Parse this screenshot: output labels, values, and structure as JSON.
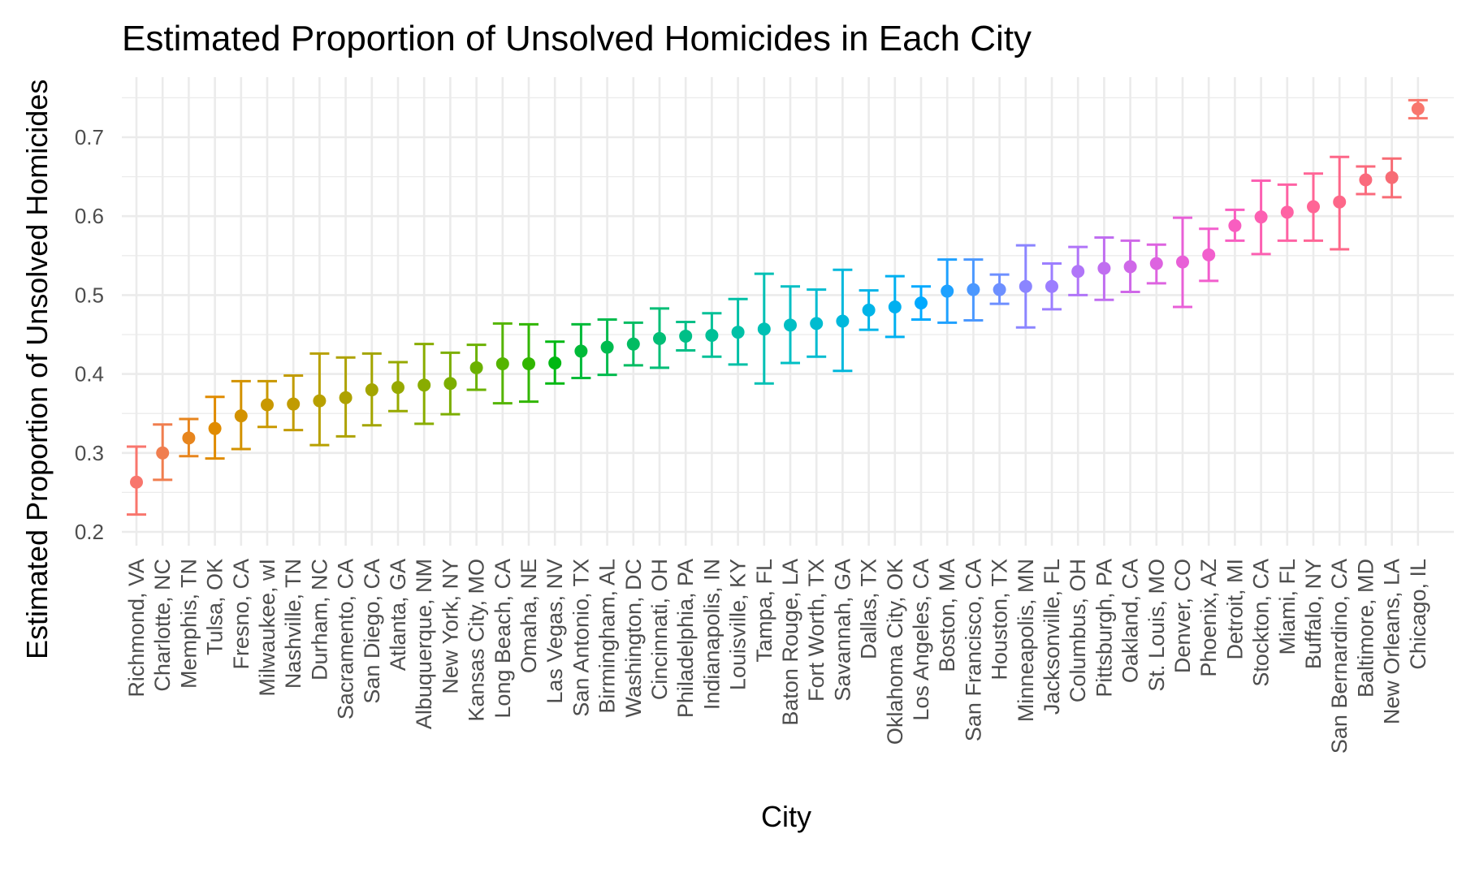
{
  "chart_data": {
    "type": "scatter",
    "title": "Estimated Proportion of Unsolved Homicides in Each City",
    "xlabel": "City",
    "ylabel": "Estimated Proportion of Unsolved Homicides",
    "ylim": [
      0.18,
      0.78
    ],
    "yticks": [
      "0.2",
      "0.3",
      "0.4",
      "0.5",
      "0.6",
      "0.7"
    ],
    "grid": true,
    "error_bars": true,
    "points": [
      {
        "city": "Richmond, VA",
        "estimate": 0.263,
        "lower": 0.222,
        "upper": 0.308,
        "color": "#F8766D"
      },
      {
        "city": "Charlotte, NC",
        "estimate": 0.3,
        "lower": 0.266,
        "upper": 0.336,
        "color": "#F07E4F"
      },
      {
        "city": "Memphis, TN",
        "estimate": 0.319,
        "lower": 0.296,
        "upper": 0.343,
        "color": "#E7851E"
      },
      {
        "city": "Tulsa, OK",
        "estimate": 0.331,
        "lower": 0.293,
        "upper": 0.371,
        "color": "#E08B00"
      },
      {
        "city": "Fresno, CA",
        "estimate": 0.347,
        "lower": 0.305,
        "upper": 0.391,
        "color": "#D39200"
      },
      {
        "city": "Milwaukee, wI",
        "estimate": 0.361,
        "lower": 0.333,
        "upper": 0.391,
        "color": "#C99800"
      },
      {
        "city": "Nashville, TN",
        "estimate": 0.362,
        "lower": 0.329,
        "upper": 0.398,
        "color": "#C19B00"
      },
      {
        "city": "Durham, NC",
        "estimate": 0.366,
        "lower": 0.31,
        "upper": 0.426,
        "color": "#B8A000"
      },
      {
        "city": "Sacramento, CA",
        "estimate": 0.37,
        "lower": 0.321,
        "upper": 0.421,
        "color": "#AEA200"
      },
      {
        "city": "San Diego, CA",
        "estimate": 0.38,
        "lower": 0.335,
        "upper": 0.426,
        "color": "#A3A500"
      },
      {
        "city": "Atlanta, GA",
        "estimate": 0.383,
        "lower": 0.353,
        "upper": 0.415,
        "color": "#97A900"
      },
      {
        "city": "Albuquerque, NM",
        "estimate": 0.386,
        "lower": 0.337,
        "upper": 0.438,
        "color": "#89AC00"
      },
      {
        "city": "New York, NY",
        "estimate": 0.388,
        "lower": 0.349,
        "upper": 0.427,
        "color": "#7CAE00"
      },
      {
        "city": "Kansas City, MO",
        "estimate": 0.408,
        "lower": 0.38,
        "upper": 0.437,
        "color": "#6BB100"
      },
      {
        "city": "Long Beach, CA",
        "estimate": 0.413,
        "lower": 0.363,
        "upper": 0.464,
        "color": "#54B400"
      },
      {
        "city": "Omaha, NE",
        "estimate": 0.413,
        "lower": 0.365,
        "upper": 0.463,
        "color": "#31B600"
      },
      {
        "city": "Las Vegas, NV",
        "estimate": 0.414,
        "lower": 0.388,
        "upper": 0.441,
        "color": "#00B812"
      },
      {
        "city": "San Antonio, TX",
        "estimate": 0.429,
        "lower": 0.395,
        "upper": 0.463,
        "color": "#00BA38"
      },
      {
        "city": "Birmingham, AL",
        "estimate": 0.434,
        "lower": 0.399,
        "upper": 0.469,
        "color": "#00BB4E"
      },
      {
        "city": "Washington, DC",
        "estimate": 0.438,
        "lower": 0.411,
        "upper": 0.465,
        "color": "#00BC62"
      },
      {
        "city": "Cincinnati, OH",
        "estimate": 0.445,
        "lower": 0.408,
        "upper": 0.483,
        "color": "#00BE76"
      },
      {
        "city": "Philadelphia, PA",
        "estimate": 0.448,
        "lower": 0.43,
        "upper": 0.466,
        "color": "#00BF87"
      },
      {
        "city": "Indianapolis, IN",
        "estimate": 0.449,
        "lower": 0.422,
        "upper": 0.477,
        "color": "#00C097"
      },
      {
        "city": "Louisville, KY",
        "estimate": 0.453,
        "lower": 0.412,
        "upper": 0.495,
        "color": "#00C0A6"
      },
      {
        "city": "Tampa, FL",
        "estimate": 0.457,
        "lower": 0.388,
        "upper": 0.527,
        "color": "#00C0B4"
      },
      {
        "city": "Baton Rouge, LA",
        "estimate": 0.462,
        "lower": 0.414,
        "upper": 0.511,
        "color": "#00BFC4"
      },
      {
        "city": "Fort Worth, TX",
        "estimate": 0.464,
        "lower": 0.422,
        "upper": 0.507,
        "color": "#00BCD0"
      },
      {
        "city": "Savannah, GA",
        "estimate": 0.467,
        "lower": 0.404,
        "upper": 0.532,
        "color": "#00B8DC"
      },
      {
        "city": "Dallas, TX",
        "estimate": 0.481,
        "lower": 0.456,
        "upper": 0.506,
        "color": "#00B4E8"
      },
      {
        "city": "Oklahoma City, OK",
        "estimate": 0.485,
        "lower": 0.447,
        "upper": 0.524,
        "color": "#00B0F0"
      },
      {
        "city": "Los Angeles, CA",
        "estimate": 0.49,
        "lower": 0.469,
        "upper": 0.511,
        "color": "#00A9FF"
      },
      {
        "city": "Boston, MA",
        "estimate": 0.505,
        "lower": 0.465,
        "upper": 0.545,
        "color": "#1EA1FF"
      },
      {
        "city": "San Francisco, CA",
        "estimate": 0.507,
        "lower": 0.468,
        "upper": 0.545,
        "color": "#4B98FF"
      },
      {
        "city": "Houston, TX",
        "estimate": 0.507,
        "lower": 0.489,
        "upper": 0.526,
        "color": "#6D8FFF"
      },
      {
        "city": "Minneapolis, MN",
        "estimate": 0.511,
        "lower": 0.459,
        "upper": 0.563,
        "color": "#8B85FF"
      },
      {
        "city": "Jacksonville, FL",
        "estimate": 0.511,
        "lower": 0.482,
        "upper": 0.54,
        "color": "#9C7EFF"
      },
      {
        "city": "Columbus, OH",
        "estimate": 0.53,
        "lower": 0.5,
        "upper": 0.561,
        "color": "#B075F8"
      },
      {
        "city": "Pittsburgh, PA",
        "estimate": 0.534,
        "lower": 0.494,
        "upper": 0.573,
        "color": "#C06EF0"
      },
      {
        "city": "Oakland, CA",
        "estimate": 0.536,
        "lower": 0.504,
        "upper": 0.569,
        "color": "#CF68E8"
      },
      {
        "city": "St. Louis, MO",
        "estimate": 0.54,
        "lower": 0.515,
        "upper": 0.564,
        "color": "#DD63E0"
      },
      {
        "city": "Denver, CO",
        "estimate": 0.542,
        "lower": 0.485,
        "upper": 0.598,
        "color": "#E860D7"
      },
      {
        "city": "Phoenix, AZ",
        "estimate": 0.551,
        "lower": 0.518,
        "upper": 0.584,
        "color": "#F25ECD"
      },
      {
        "city": "Detroit, MI",
        "estimate": 0.588,
        "lower": 0.569,
        "upper": 0.608,
        "color": "#F85EC0"
      },
      {
        "city": "Stockton, CA",
        "estimate": 0.599,
        "lower": 0.552,
        "upper": 0.645,
        "color": "#FC60B2"
      },
      {
        "city": "Miami, FL",
        "estimate": 0.605,
        "lower": 0.569,
        "upper": 0.64,
        "color": "#FE62A4"
      },
      {
        "city": "Buffalo, NY",
        "estimate": 0.612,
        "lower": 0.569,
        "upper": 0.654,
        "color": "#FF6596"
      },
      {
        "city": "San Bernardino, CA",
        "estimate": 0.618,
        "lower": 0.558,
        "upper": 0.675,
        "color": "#FD6789"
      },
      {
        "city": "Baltimore, MD",
        "estimate": 0.646,
        "lower": 0.628,
        "upper": 0.663,
        "color": "#FA6A7C"
      },
      {
        "city": "New Orleans, LA",
        "estimate": 0.649,
        "lower": 0.624,
        "upper": 0.673,
        "color": "#F76C75"
      },
      {
        "city": "Chicago, IL",
        "estimate": 0.736,
        "lower": 0.724,
        "upper": 0.747,
        "color": "#F8766D"
      }
    ]
  }
}
